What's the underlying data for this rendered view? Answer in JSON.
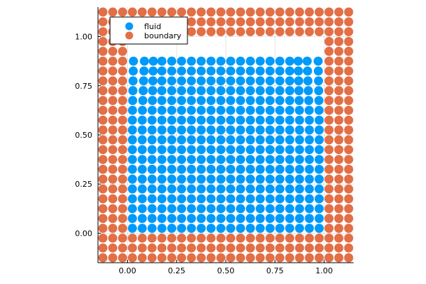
{
  "chart_data": {
    "type": "scatter",
    "title": "",
    "xlabel": "",
    "ylabel": "",
    "xlim": [
      -0.15,
      1.15
    ],
    "ylim": [
      -0.15,
      1.15
    ],
    "xticks": [
      0.0,
      0.25,
      0.5,
      0.75,
      1.0
    ],
    "yticks": [
      0.0,
      0.25,
      0.5,
      0.75,
      1.0
    ],
    "xtick_labels": [
      "0.00",
      "0.25",
      "0.50",
      "0.75",
      "1.00"
    ],
    "ytick_labels": [
      "0.00",
      "0.25",
      "0.50",
      "0.75",
      "1.00"
    ],
    "grid": true,
    "legend_position": "top-left",
    "aspect": "equal",
    "series": [
      {
        "name": "fluid",
        "color": "#009AFA",
        "grid_spacing": 0.05,
        "x_range": [
          0.025,
          0.975
        ],
        "y_range": [
          0.025,
          0.875
        ],
        "description_count": 360
      },
      {
        "name": "boundary",
        "color": "#E26F46",
        "grid_spacing": 0.05,
        "left_wall_x": [
          -0.125,
          -0.075,
          -0.025
        ],
        "right_wall_x": [
          1.025,
          1.075,
          1.125
        ],
        "bottom_wall_y": [
          -0.125,
          -0.075,
          -0.025
        ],
        "y_top": 1.125
      }
    ]
  }
}
